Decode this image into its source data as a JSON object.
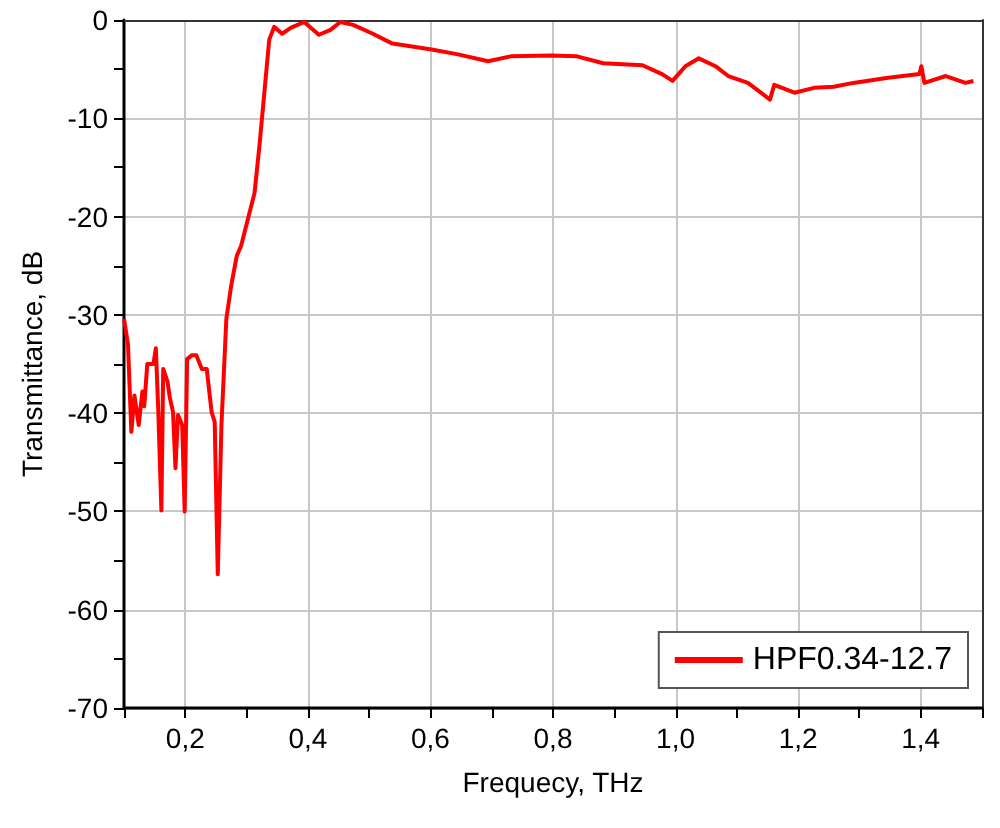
{
  "chart_data": {
    "type": "line",
    "xlabel": "Frequecy, THz",
    "ylabel": "Transmittance, dB",
    "xlim": [
      0.1,
      1.5
    ],
    "ylim": [
      -70,
      0
    ],
    "xticks": [
      {
        "value": 0.1,
        "label": null
      },
      {
        "value": 0.2,
        "label": "0,2"
      },
      {
        "value": 0.3,
        "label": null
      },
      {
        "value": 0.4,
        "label": "0,4"
      },
      {
        "value": 0.5,
        "label": null
      },
      {
        "value": 0.6,
        "label": "0,6"
      },
      {
        "value": 0.7,
        "label": null
      },
      {
        "value": 0.8,
        "label": "0,8"
      },
      {
        "value": 0.9,
        "label": null
      },
      {
        "value": 1.0,
        "label": "1,0"
      },
      {
        "value": 1.1,
        "label": null
      },
      {
        "value": 1.2,
        "label": "1,2"
      },
      {
        "value": 1.3,
        "label": null
      },
      {
        "value": 1.4,
        "label": "1,4"
      },
      {
        "value": 1.5,
        "label": null
      }
    ],
    "yticks": [
      -70,
      {
        "value": -65,
        "label": null
      },
      -60,
      {
        "value": -55,
        "label": null
      },
      -50,
      {
        "value": -45,
        "label": null
      },
      -40,
      {
        "value": -35,
        "label": null
      },
      -30,
      {
        "value": -25,
        "label": null
      },
      -20,
      {
        "value": -15,
        "label": null
      },
      -10,
      {
        "value": -5,
        "label": null
      },
      0
    ],
    "grid": true,
    "legend": "bottom right",
    "marker": "none",
    "line_style": "solid",
    "series": [
      {
        "name": "HPF0.34-12.7",
        "color": "#ff0000",
        "x": [
          0.1,
          0.1065,
          0.112,
          0.117,
          0.124,
          0.13,
          0.133,
          0.138,
          0.148,
          0.152,
          0.156,
          0.161,
          0.164,
          0.171,
          0.175,
          0.18,
          0.184,
          0.188,
          0.195,
          0.199,
          0.203,
          0.211,
          0.218,
          0.227,
          0.235,
          0.243,
          0.248,
          0.253,
          0.259,
          0.267,
          0.275,
          0.284,
          0.291,
          0.302,
          0.313,
          0.321,
          0.329,
          0.337,
          0.345,
          0.358,
          0.372,
          0.394,
          0.418,
          0.437,
          0.453,
          0.474,
          0.506,
          0.538,
          0.602,
          0.645,
          0.694,
          0.731,
          0.796,
          0.839,
          0.882,
          0.946,
          0.978,
          0.995,
          1.016,
          1.038,
          1.065,
          1.086,
          1.118,
          1.154,
          1.161,
          1.194,
          1.226,
          1.258,
          1.29,
          1.344,
          1.398,
          1.401,
          1.406,
          1.441,
          1.473,
          1.486
        ],
        "values": [
          -30.4,
          -33,
          -41.9,
          -38.2,
          -41.2,
          -37.8,
          -39.3,
          -35,
          -35,
          -33.4,
          -39.9,
          -49.9,
          -35.5,
          -36.8,
          -38.5,
          -39.9,
          -45.6,
          -40.2,
          -41.2,
          -50,
          -34.5,
          -34.1,
          -34.1,
          -35.5,
          -35.5,
          -39.9,
          -40.9,
          -56.4,
          -41.2,
          -30.4,
          -27,
          -24,
          -23,
          -20.3,
          -17.6,
          -12.8,
          -7.4,
          -2,
          -0.7,
          -1.4,
          -0.8,
          -0.2,
          -1.5,
          -1,
          -0.2,
          -0.5,
          -1.4,
          -2.4,
          -3,
          -3.5,
          -4.2,
          -3.7,
          -3.6,
          -3.7,
          -4.4,
          -4.6,
          -5.5,
          -6.2,
          -4.7,
          -3.9,
          -4.7,
          -5.7,
          -6.4,
          -8.1,
          -6.6,
          -7.4,
          -6.9,
          -6.8,
          -6.4,
          -5.9,
          -5.5,
          -4.7,
          -6.4,
          -5.7,
          -6.4,
          -6.2
        ]
      }
    ]
  }
}
